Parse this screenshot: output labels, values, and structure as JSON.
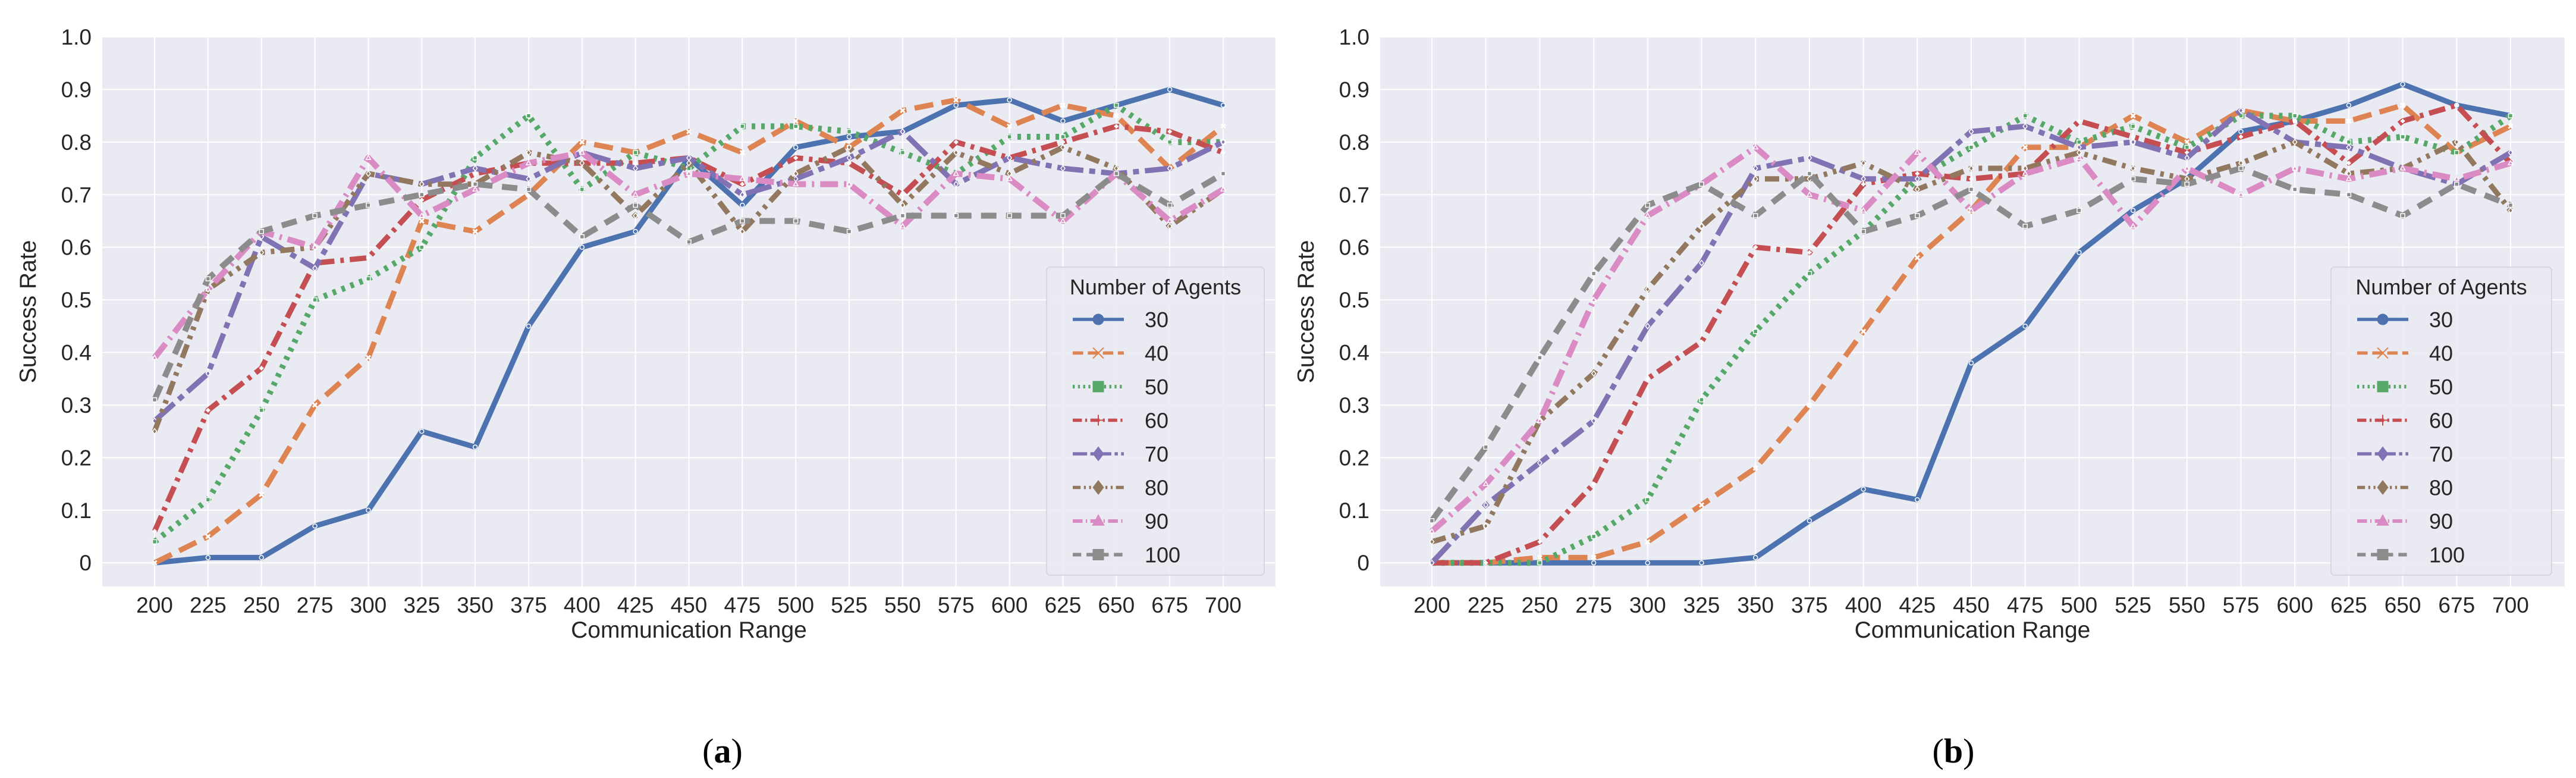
{
  "chart_data": [
    {
      "type": "line",
      "panel_label": "a",
      "xlabel": "Communication Range",
      "ylabel": "Success Rate",
      "x": [
        200,
        225,
        250,
        275,
        300,
        325,
        350,
        375,
        400,
        425,
        450,
        475,
        500,
        525,
        550,
        575,
        600,
        625,
        650,
        675,
        700
      ],
      "yticks": [
        "0",
        "0.1",
        "0.2",
        "0.3",
        "0.4",
        "0.5",
        "0.6",
        "0.7",
        "0.8",
        "0.9",
        "1.0"
      ],
      "ylim": [
        -0.045,
        1.0
      ],
      "grid": true,
      "legend": {
        "title": "Number of Agents",
        "placement": "lower-right"
      },
      "series": [
        {
          "name": "30",
          "color": "#4c72b0",
          "values": [
            0,
            0.01,
            0.01,
            0.07,
            0.1,
            0.25,
            0.22,
            0.45,
            0.6,
            0.63,
            0.77,
            0.68,
            0.79,
            0.81,
            0.82,
            0.87,
            0.88,
            0.84,
            0.87,
            0.9,
            0.87
          ]
        },
        {
          "name": "40",
          "color": "#dd8452",
          "values": [
            0,
            0.05,
            0.13,
            0.3,
            0.39,
            0.65,
            0.63,
            0.7,
            0.8,
            0.78,
            0.82,
            0.78,
            0.84,
            0.79,
            0.86,
            0.88,
            0.83,
            0.87,
            0.85,
            0.75,
            0.83
          ]
        },
        {
          "name": "50",
          "color": "#55a868",
          "values": [
            0.04,
            0.12,
            0.29,
            0.5,
            0.54,
            0.6,
            0.77,
            0.85,
            0.71,
            0.78,
            0.75,
            0.83,
            0.83,
            0.82,
            0.78,
            0.74,
            0.81,
            0.81,
            0.87,
            0.8,
            0.8
          ]
        },
        {
          "name": "60",
          "color": "#c44e52",
          "values": [
            0.06,
            0.29,
            0.37,
            0.57,
            0.58,
            0.69,
            0.74,
            0.76,
            0.76,
            0.76,
            0.77,
            0.72,
            0.77,
            0.76,
            0.7,
            0.8,
            0.77,
            0.8,
            0.83,
            0.82,
            0.78
          ]
        },
        {
          "name": "70",
          "color": "#8172b3",
          "values": [
            0.27,
            0.36,
            0.62,
            0.56,
            0.74,
            0.72,
            0.75,
            0.73,
            0.78,
            0.75,
            0.77,
            0.7,
            0.73,
            0.77,
            0.82,
            0.72,
            0.77,
            0.75,
            0.74,
            0.75,
            0.8
          ]
        },
        {
          "name": "80",
          "color": "#937860",
          "values": [
            0.25,
            0.52,
            0.59,
            0.6,
            0.74,
            0.72,
            0.72,
            0.78,
            0.76,
            0.66,
            0.76,
            0.63,
            0.74,
            0.79,
            0.68,
            0.78,
            0.74,
            0.79,
            0.75,
            0.64,
            0.71
          ]
        },
        {
          "name": "90",
          "color": "#da8bc3",
          "values": [
            0.39,
            0.52,
            0.63,
            0.6,
            0.77,
            0.66,
            0.71,
            0.76,
            0.78,
            0.7,
            0.74,
            0.73,
            0.72,
            0.72,
            0.64,
            0.74,
            0.73,
            0.65,
            0.74,
            0.65,
            0.71
          ]
        },
        {
          "name": "100",
          "color": "#8c8c8c",
          "values": [
            0.31,
            0.54,
            0.63,
            0.66,
            0.68,
            0.7,
            0.72,
            0.71,
            0.62,
            0.68,
            0.61,
            0.65,
            0.65,
            0.63,
            0.66,
            0.66,
            0.66,
            0.66,
            0.74,
            0.68,
            0.74
          ]
        }
      ]
    },
    {
      "type": "line",
      "panel_label": "b",
      "xlabel": "Communication Range",
      "ylabel": "Success Rate",
      "x": [
        200,
        225,
        250,
        275,
        300,
        325,
        350,
        375,
        400,
        425,
        450,
        475,
        500,
        525,
        550,
        575,
        600,
        625,
        650,
        675,
        700
      ],
      "yticks": [
        "0",
        "0.1",
        "0.2",
        "0.3",
        "0.4",
        "0.5",
        "0.6",
        "0.7",
        "0.8",
        "0.9",
        "1.0"
      ],
      "ylim": [
        -0.045,
        1.0
      ],
      "grid": true,
      "legend": {
        "title": "Number of Agents",
        "placement": "lower-right"
      },
      "series": [
        {
          "name": "30",
          "color": "#4c72b0",
          "values": [
            0,
            0,
            0,
            0,
            0,
            0,
            0.01,
            0.08,
            0.14,
            0.12,
            0.38,
            0.45,
            0.59,
            0.67,
            0.73,
            0.82,
            0.84,
            0.87,
            0.91,
            0.87,
            0.85
          ]
        },
        {
          "name": "40",
          "color": "#dd8452",
          "values": [
            0,
            0,
            0.01,
            0.01,
            0.04,
            0.11,
            0.18,
            0.3,
            0.44,
            0.58,
            0.67,
            0.79,
            0.79,
            0.85,
            0.8,
            0.86,
            0.84,
            0.84,
            0.87,
            0.78,
            0.83
          ]
        },
        {
          "name": "50",
          "color": "#55a868",
          "values": [
            0,
            0,
            0,
            0.05,
            0.12,
            0.31,
            0.44,
            0.55,
            0.63,
            0.73,
            0.79,
            0.85,
            0.8,
            0.83,
            0.79,
            0.85,
            0.85,
            0.8,
            0.81,
            0.78,
            0.85
          ]
        },
        {
          "name": "60",
          "color": "#c44e52",
          "values": [
            0,
            0,
            0.04,
            0.15,
            0.35,
            0.42,
            0.6,
            0.59,
            0.72,
            0.74,
            0.73,
            0.74,
            0.84,
            0.81,
            0.78,
            0.81,
            0.84,
            0.76,
            0.84,
            0.87,
            0.76
          ]
        },
        {
          "name": "70",
          "color": "#8172b3",
          "values": [
            0,
            0.11,
            0.19,
            0.27,
            0.45,
            0.57,
            0.75,
            0.77,
            0.73,
            0.73,
            0.82,
            0.83,
            0.79,
            0.8,
            0.77,
            0.86,
            0.8,
            0.79,
            0.75,
            0.72,
            0.78
          ]
        },
        {
          "name": "80",
          "color": "#937860",
          "values": [
            0.04,
            0.07,
            0.27,
            0.36,
            0.52,
            0.64,
            0.73,
            0.73,
            0.76,
            0.71,
            0.75,
            0.75,
            0.78,
            0.75,
            0.73,
            0.76,
            0.8,
            0.74,
            0.75,
            0.8,
            0.67
          ]
        },
        {
          "name": "90",
          "color": "#da8bc3",
          "values": [
            0.06,
            0.15,
            0.27,
            0.5,
            0.66,
            0.72,
            0.79,
            0.7,
            0.67,
            0.78,
            0.67,
            0.74,
            0.77,
            0.64,
            0.75,
            0.7,
            0.75,
            0.73,
            0.75,
            0.73,
            0.76
          ]
        },
        {
          "name": "100",
          "color": "#8c8c8c",
          "values": [
            0.08,
            0.22,
            0.39,
            0.55,
            0.68,
            0.72,
            0.66,
            0.74,
            0.63,
            0.66,
            0.71,
            0.64,
            0.67,
            0.73,
            0.72,
            0.75,
            0.71,
            0.7,
            0.66,
            0.72,
            0.68
          ]
        }
      ]
    }
  ]
}
